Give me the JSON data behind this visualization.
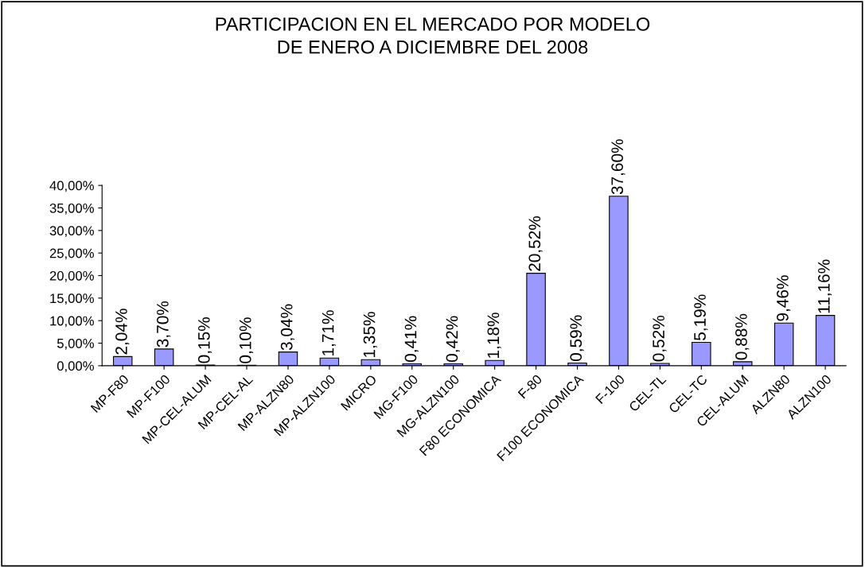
{
  "chart_data": {
    "type": "bar",
    "title": "PARTICIPACION EN EL MERCADO POR MODELO\nDE ENERO A DICIEMBRE DEL 2008",
    "categories": [
      "MP-F80",
      "MP-F100",
      "MP-CEL-ALUM",
      "MP-CEL-AL",
      "MP-ALZN80",
      "MP-ALZN100",
      "MICRO",
      "MG-F100",
      "MG-ALZN100",
      "F80 ECONOMICA",
      "F-80",
      "F100 ECONOMICA",
      "F-100",
      "CEL-TL",
      "CEL-TC",
      "CEL-ALUM",
      "ALZN80",
      "ALZN100"
    ],
    "values": [
      2.04,
      3.7,
      0.15,
      0.1,
      3.04,
      1.71,
      1.35,
      0.41,
      0.42,
      1.18,
      20.52,
      0.59,
      37.6,
      0.52,
      5.19,
      0.88,
      9.46,
      11.16
    ],
    "value_labels": [
      "2,04%",
      "3,70%",
      "0,15%",
      "0,10%",
      "3,04%",
      "1,71%",
      "1,35%",
      "0,41%",
      "0,42%",
      "1,18%",
      "20,52%",
      "0,59%",
      "37,60%",
      "0,52%",
      "5,19%",
      "0,88%",
      "9,46%",
      "11,16%"
    ],
    "color": "#9999ff",
    "ylim": [
      0,
      40
    ],
    "yticks": [
      {
        "value": 0,
        "label": "0,00%"
      },
      {
        "value": 5,
        "label": "5,00%"
      },
      {
        "value": 10,
        "label": "10,00%"
      },
      {
        "value": 15,
        "label": "15,00%"
      },
      {
        "value": 20,
        "label": "20,00%"
      },
      {
        "value": 25,
        "label": "25,00%"
      },
      {
        "value": 30,
        "label": "30,00%"
      },
      {
        "value": 35,
        "label": "35,00%"
      },
      {
        "value": 40,
        "label": "40,00%"
      }
    ],
    "grid": false,
    "legend": false
  }
}
